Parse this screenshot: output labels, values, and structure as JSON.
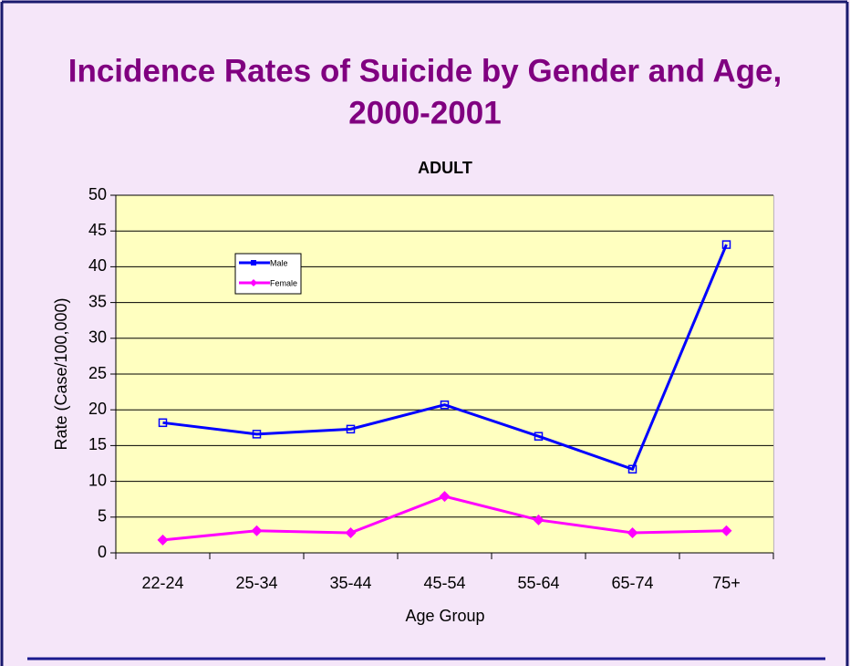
{
  "chart_data": {
    "type": "line",
    "title": "Incidence Rates of Suicide by Gender and Age,",
    "title_line2": "2000-2001",
    "subtitle": "ADULT",
    "x_label": "Age Group",
    "y_label": "Rate  (Case/100,000)",
    "categories": [
      "22-24",
      "25-34",
      "35-44",
      "45-54",
      "55-64",
      "65-74",
      "75+"
    ],
    "series": [
      {
        "name": "Male",
        "color": "#0000ff",
        "marker": "square",
        "values": [
          18.2,
          16.6,
          17.3,
          20.7,
          16.3,
          11.7,
          43.1
        ]
      },
      {
        "name": "Female",
        "color": "#ff00ff",
        "marker": "diamond",
        "values": [
          1.8,
          3.1,
          2.8,
          7.9,
          4.6,
          2.8,
          3.1
        ]
      }
    ],
    "ylim": [
      0,
      50
    ],
    "yticks": [
      0,
      5,
      10,
      15,
      20,
      25,
      30,
      35,
      40,
      45,
      50
    ],
    "grid": true,
    "plot_background": "#ffffc0"
  }
}
